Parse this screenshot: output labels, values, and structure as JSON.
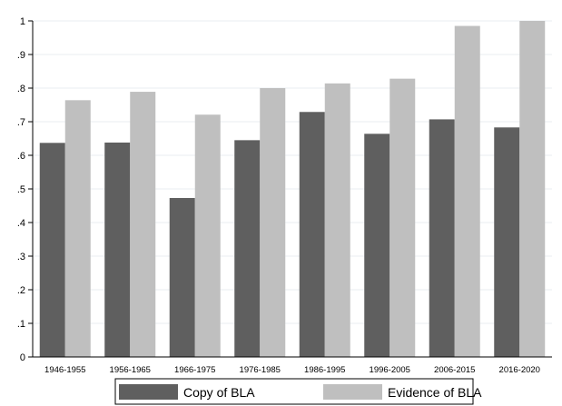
{
  "chart_data": {
    "type": "bar",
    "title": "",
    "xlabel": "",
    "ylabel": "",
    "categories": [
      "1946-1955",
      "1956-1965",
      "1966-1975",
      "1976-1985",
      "1986-1995",
      "1996-2005",
      "2006-2015",
      "2016-2020"
    ],
    "series": [
      {
        "name": "Copy of BLA",
        "color": "#5f5f5f",
        "values": [
          0.637,
          0.638,
          0.473,
          0.645,
          0.729,
          0.664,
          0.707,
          0.683
        ]
      },
      {
        "name": "Evidence of BLA",
        "color": "#bfbfbf",
        "values": [
          0.764,
          0.789,
          0.721,
          0.8,
          0.814,
          0.828,
          0.985,
          1.0
        ]
      }
    ],
    "ylim": [
      0,
      1
    ],
    "yticks": [
      0,
      0.1,
      0.2,
      0.3,
      0.4,
      0.5,
      0.6,
      0.7,
      0.8,
      0.9,
      1
    ],
    "ytick_labels": [
      "0",
      ".1",
      ".2",
      ".3",
      ".4",
      ".5",
      ".6",
      ".7",
      ".8",
      ".9",
      "1"
    ],
    "grid": true,
    "legend_position": "bottom"
  }
}
